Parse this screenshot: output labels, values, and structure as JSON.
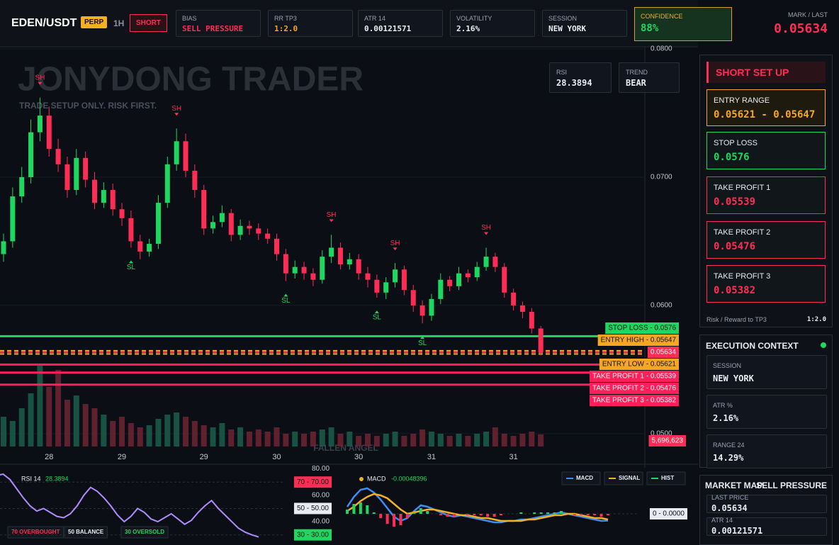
{
  "header": {
    "symbol": "EDEN/USDT",
    "badge": "PERP",
    "timeframe": "1H",
    "side": "SHORT",
    "stats": [
      {
        "label": "BIAS",
        "value": "SELL PRESSURE",
        "color": "#ff2d55"
      },
      {
        "label": "RR TP3",
        "value": "1:2.0",
        "color": "#f5a623"
      },
      {
        "label": "ATR 14",
        "value": "0.00121571",
        "color": "#e8ecf2"
      },
      {
        "label": "VOLATILITY",
        "value": "2.16%",
        "color": "#e8ecf2"
      },
      {
        "label": "SESSION",
        "value": "NEW YORK",
        "color": "#e8ecf2"
      },
      {
        "label": "CONFIDENCE",
        "value": "88%",
        "color": "#1ed760"
      }
    ],
    "mark_label": "MARK / LAST",
    "mark": "0.05634"
  },
  "watermark": {
    "title": "JONYDONG TRADER",
    "subtitle": "TRADE SETUP ONLY. RISK FIRST.",
    "footer": "FALLEN ANGEL"
  },
  "info_boxes": [
    {
      "label": "RSI",
      "value": "28.3894"
    },
    {
      "label": "TREND",
      "value": "BEAR"
    }
  ],
  "chart_data": [
    {
      "type": "candlestick",
      "categories": [
        null,
        null,
        null,
        null,
        null,
        "28",
        null,
        null,
        null,
        null,
        null,
        null,
        null,
        "29",
        null,
        null,
        null,
        null,
        null,
        null,
        null,
        null,
        "29",
        null,
        null,
        null,
        null,
        null,
        null,
        null,
        "30",
        null,
        null,
        null,
        null,
        null,
        null,
        null,
        null,
        "30",
        null,
        null,
        null,
        null,
        null,
        null,
        null,
        "31",
        null,
        null,
        null,
        null,
        null,
        null,
        null,
        null,
        "31",
        null,
        null,
        null
      ],
      "open": [
        0.064,
        0.065,
        0.0685,
        0.07,
        0.0735,
        0.0748,
        0.0722,
        0.071,
        0.069,
        0.0715,
        0.0698,
        0.068,
        0.069,
        0.0675,
        0.0668,
        0.065,
        0.0642,
        0.0648,
        0.068,
        0.071,
        0.0728,
        0.0705,
        0.069,
        0.066,
        0.0665,
        0.0672,
        0.0655,
        0.0662,
        0.066,
        0.0656,
        0.0652,
        0.064,
        0.0625,
        0.063,
        0.0625,
        0.062,
        0.0638,
        0.0645,
        0.0632,
        0.0636,
        0.0625,
        0.062,
        0.061,
        0.0618,
        0.0628,
        0.0612,
        0.06,
        0.0592,
        0.0605,
        0.062,
        0.0615,
        0.0625,
        0.0622,
        0.063,
        0.0638,
        0.063,
        0.061,
        0.06,
        0.0595,
        0.0582
      ],
      "high": [
        0.0656,
        0.0692,
        0.0708,
        0.0745,
        0.0762,
        0.0755,
        0.073,
        0.0716,
        0.0722,
        0.072,
        0.0704,
        0.0696,
        0.0695,
        0.068,
        0.0674,
        0.0655,
        0.0652,
        0.0686,
        0.0716,
        0.0738,
        0.0734,
        0.071,
        0.0694,
        0.067,
        0.0678,
        0.0675,
        0.0667,
        0.0666,
        0.0664,
        0.066,
        0.0656,
        0.0644,
        0.0635,
        0.0634,
        0.0629,
        0.0643,
        0.0655,
        0.0649,
        0.0641,
        0.064,
        0.063,
        0.0624,
        0.0622,
        0.0633,
        0.0631,
        0.0616,
        0.0604,
        0.0609,
        0.0625,
        0.0623,
        0.063,
        0.0628,
        0.0634,
        0.0645,
        0.0641,
        0.0633,
        0.0613,
        0.0603,
        0.0598,
        0.0584
      ],
      "low": [
        0.0634,
        0.0645,
        0.068,
        0.0695,
        0.0728,
        0.0716,
        0.0704,
        0.0684,
        0.0686,
        0.0692,
        0.0675,
        0.0676,
        0.067,
        0.0662,
        0.0645,
        0.0636,
        0.0638,
        0.0644,
        0.0676,
        0.0705,
        0.07,
        0.0684,
        0.0655,
        0.0656,
        0.0661,
        0.065,
        0.0651,
        0.0655,
        0.0651,
        0.0648,
        0.0635,
        0.0619,
        0.0621,
        0.062,
        0.0615,
        0.0617,
        0.0633,
        0.0628,
        0.0628,
        0.062,
        0.0614,
        0.0606,
        0.0605,
        0.0614,
        0.0608,
        0.0595,
        0.0586,
        0.0588,
        0.0601,
        0.0611,
        0.0612,
        0.0618,
        0.0619,
        0.0627,
        0.0626,
        0.0606,
        0.0596,
        0.059,
        0.0578,
        0.0561
      ],
      "close": [
        0.065,
        0.0685,
        0.07,
        0.0735,
        0.0748,
        0.0722,
        0.071,
        0.069,
        0.0715,
        0.0698,
        0.068,
        0.069,
        0.0675,
        0.0668,
        0.065,
        0.0642,
        0.0648,
        0.068,
        0.071,
        0.0728,
        0.0705,
        0.069,
        0.066,
        0.0665,
        0.0672,
        0.0655,
        0.0662,
        0.066,
        0.0656,
        0.0652,
        0.064,
        0.0625,
        0.063,
        0.0625,
        0.062,
        0.0638,
        0.0645,
        0.0632,
        0.0636,
        0.0625,
        0.062,
        0.061,
        0.0618,
        0.0628,
        0.0612,
        0.06,
        0.0592,
        0.0605,
        0.062,
        0.0615,
        0.0625,
        0.0622,
        0.063,
        0.0638,
        0.063,
        0.061,
        0.06,
        0.0595,
        0.0582,
        0.05634
      ],
      "up_color": "#1ed760",
      "down_color": "#ff2d55",
      "ylim": [
        0.049,
        0.08
      ],
      "yticks": [
        {
          "value": 0.05,
          "label": "0.0500"
        },
        {
          "value": 0.06,
          "label": "0.0600"
        },
        {
          "value": 0.07,
          "label": "0.0700"
        },
        {
          "value": 0.08,
          "label": "0.0800"
        }
      ],
      "grid": true,
      "volume": [
        14000000,
        12000000,
        18000000,
        25000000,
        38000000,
        28000000,
        36000000,
        22000000,
        24000000,
        20000000,
        18000000,
        15000000,
        12000000,
        14000000,
        11000000,
        9000000,
        10000000,
        13000000,
        15000000,
        16000000,
        14000000,
        12000000,
        10000000,
        9000000,
        11000000,
        8000000,
        9000000,
        7000000,
        8000000,
        7000000,
        9000000,
        6000000,
        7000000,
        6000000,
        7000000,
        8000000,
        9000000,
        6000000,
        7000000,
        5000000,
        6000000,
        5000000,
        6000000,
        7000000,
        5000000,
        6000000,
        8000000,
        7000000,
        6000000,
        5000000,
        6000000,
        5000000,
        6000000,
        7000000,
        9000000,
        6000000,
        5000000,
        6000000,
        7000000,
        5696623
      ],
      "volume_ylim": [
        0,
        40000000
      ],
      "volume_last_label": "5,696,623",
      "levels": [
        {
          "value": 0.0576,
          "label": "STOP LOSS - 0.0576",
          "color": "#1ed760",
          "dashed": false
        },
        {
          "value": 0.05647,
          "label": "ENTRY HIGH - 0.05647",
          "color": "#f5a623",
          "dashed": true
        },
        {
          "value": 0.05634,
          "label": "0.05634",
          "color": "#ff2d55",
          "dashed": true
        },
        {
          "value": 0.05621,
          "label": "ENTRY LOW - 0.05621",
          "color": "#f5a623",
          "dashed": true
        },
        {
          "value": 0.05539,
          "label": "TAKE PROFIT 1 - 0.05539",
          "color": "#ff1f5a",
          "dashed": false
        },
        {
          "value": 0.05476,
          "label": "TAKE PROFIT 2 - 0.05476",
          "color": "#ff1f5a",
          "dashed": false
        },
        {
          "value": 0.05382,
          "label": "TAKE PROFIT 3 - 0.05382",
          "color": "#ff1f5a",
          "dashed": false
        }
      ],
      "markers": [
        {
          "label": "SH",
          "index": 4,
          "at": "high"
        },
        {
          "label": "SH",
          "index": 19,
          "at": "high"
        },
        {
          "label": "SH",
          "index": 36,
          "at": "high"
        },
        {
          "label": "SH",
          "index": 43,
          "at": "high"
        },
        {
          "label": "SH",
          "index": 53,
          "at": "high"
        },
        {
          "label": "SL",
          "index": 14,
          "at": "low"
        },
        {
          "label": "SL",
          "index": 31,
          "at": "low"
        },
        {
          "label": "SL",
          "index": 41,
          "at": "low"
        },
        {
          "label": "SL",
          "index": 46,
          "at": "low"
        }
      ]
    },
    {
      "type": "line",
      "title": "RSI 14",
      "last": "28.3894",
      "series": [
        {
          "name": "RSI 14",
          "color": "#b18cff",
          "values": [
            75,
            76,
            72,
            65,
            58,
            52,
            48,
            50,
            47,
            44,
            43,
            46,
            52,
            60,
            66,
            63,
            58,
            52,
            45,
            40,
            44,
            50,
            47,
            42,
            40,
            43,
            46,
            42,
            38,
            41,
            47,
            52,
            56,
            50,
            45,
            40,
            35,
            32,
            30,
            28.3894
          ]
        }
      ],
      "ylim": [
        25,
        83
      ],
      "yticks": [
        {
          "value": 80,
          "label": "80.00"
        },
        {
          "value": 70,
          "label": "70.00"
        },
        {
          "value": 60,
          "label": "60.00"
        },
        {
          "value": 50,
          "label": "50.00"
        },
        {
          "value": 40,
          "label": "40.00"
        },
        {
          "value": 30,
          "label": "30.00"
        }
      ],
      "levels": [
        {
          "value": 70,
          "label": "70 - 70.00",
          "color": "#ff2d55",
          "legend": "70 OVERBOUGHT"
        },
        {
          "value": 50,
          "label": "50 - 50.00",
          "color": "#e8ecf2",
          "legend": "50 BALANCE"
        },
        {
          "value": 30,
          "label": "30 - 30.00",
          "color": "#1ed760",
          "legend": "30 OVERSOLD"
        }
      ]
    },
    {
      "type": "macd",
      "title": "MACD",
      "last": "-0.00048396",
      "series": [
        {
          "name": "MACD",
          "color": "#3a8ef6",
          "values": [
            0.0005,
            0.0012,
            0.0017,
            0.0018,
            0.0015,
            0.001,
            0.0004,
            -0.0002,
            -0.0005,
            -0.0003,
            0.0002,
            0.0006,
            0.0005,
            0.0003,
            0.0001,
            -0.0001,
            -0.0002,
            -0.0001,
            -0.0002,
            -0.0003,
            -0.0004,
            -0.0005,
            -0.0006,
            -0.0006,
            -0.0005,
            -0.0005,
            -0.0004,
            -0.0004,
            -0.0003,
            -0.0002,
            -0.0001,
            0.0,
            0.0001,
            0.0,
            -0.0001,
            -0.0002,
            -0.0003,
            -0.0004,
            -0.0005,
            -0.00048396
          ]
        },
        {
          "name": "SIGNAL",
          "color": "#f5b021",
          "values": [
            0.0002,
            0.0005,
            0.0009,
            0.0012,
            0.0014,
            0.0013,
            0.0011,
            0.0007,
            0.0003,
            0.0,
            0.0001,
            0.0002,
            0.0003,
            0.0003,
            0.0002,
            0.0001,
            0.0,
            -0.0001,
            -0.0001,
            -0.0002,
            -0.0003,
            -0.0003,
            -0.0004,
            -0.0005,
            -0.0005,
            -0.0005,
            -0.0005,
            -0.0004,
            -0.0004,
            -0.0003,
            -0.0002,
            -0.0001,
            -0.0001,
            0.0,
            0.0,
            -0.0001,
            -0.0002,
            -0.0003,
            -0.0003,
            -0.0004
          ]
        },
        {
          "name": "HIST",
          "color": "#1ed760",
          "neg_color": "#ff2d55",
          "values": [
            0.0003,
            0.0007,
            0.0008,
            0.0006,
            0.0001,
            -0.0003,
            -0.0007,
            -0.0009,
            -0.0008,
            -0.0003,
            0.0001,
            0.0004,
            0.0002,
            0.0,
            -0.0001,
            -0.0002,
            -0.0002,
            0.0,
            -0.0001,
            -0.0001,
            -0.0001,
            -0.0002,
            -0.0002,
            -0.0001,
            0.0,
            0.0,
            0.0001,
            0.0,
            0.0001,
            0.0001,
            0.0001,
            0.0001,
            0.0002,
            0.0,
            -0.0001,
            -0.0001,
            -0.0001,
            -0.0001,
            -0.0002,
            -0.0001
          ]
        }
      ],
      "ylim": [
        -0.002,
        0.003
      ],
      "zero": {
        "value": 0,
        "label": "0 - 0.0000"
      }
    }
  ],
  "setup": {
    "title": "SHORT SET UP",
    "cards": [
      {
        "label": "ENTRY RANGE",
        "value": "0.05621 - 0.05647",
        "color": "#f5a623"
      },
      {
        "label": "STOP LOSS",
        "value": "0.0576",
        "color": "#1ed760"
      },
      {
        "label": "TAKE PROFIT 1",
        "value": "0.05539",
        "color": "#ff2d55"
      },
      {
        "label": "TAKE PROFIT 2",
        "value": "0.05476",
        "color": "#ff2d55"
      },
      {
        "label": "TAKE PROFIT 3",
        "value": "0.05382",
        "color": "#ff2d55"
      }
    ],
    "rr_label": "Risk / Reward to TP3",
    "rr": "1:2.0"
  },
  "execution": {
    "title": "EXECUTION CONTEXT",
    "items": [
      {
        "label": "SESSION",
        "value": "NEW YORK"
      },
      {
        "label": "ATR %",
        "value": "2.16%"
      },
      {
        "label": "RANGE 24",
        "value": "14.29%"
      }
    ]
  },
  "market_map": {
    "title": "MARKET MAP",
    "bias": "SELL PRESSURE",
    "items": [
      {
        "label": "LAST PRICE",
        "value": "0.05634"
      },
      {
        "label": "ATR 14",
        "value": "0.00121571"
      }
    ]
  }
}
